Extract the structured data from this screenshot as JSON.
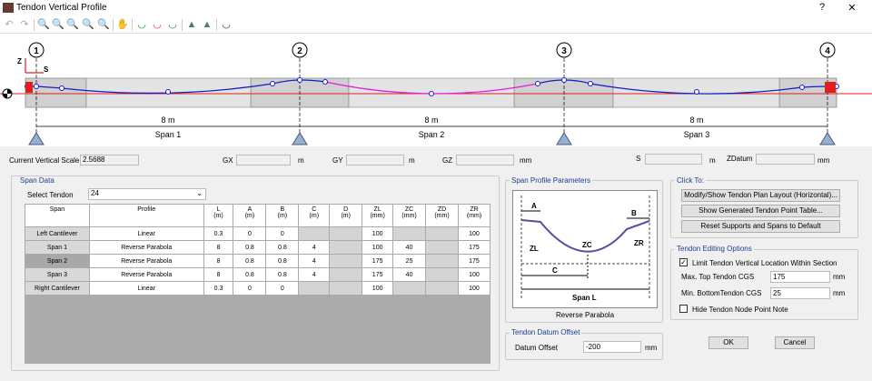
{
  "window": {
    "title": "Tendon Vertical Profile",
    "help": "?",
    "close": "✕"
  },
  "toolbar": {
    "icons": [
      "undo-icon",
      "redo-icon",
      "zoom-window-icon",
      "zoom-extents-icon",
      "zoom-in-icon",
      "zoom-previous-icon",
      "zoom-out-icon",
      "pan-icon",
      "view-top-icon",
      "view-mid-icon",
      "view-bottom-icon",
      "add-point-icon",
      "delete-point-icon",
      "tendon-shape-icon"
    ]
  },
  "drawing": {
    "supports": [
      "1",
      "2",
      "3",
      "4"
    ],
    "spans": [
      {
        "length": "8 m",
        "label": "Span 1"
      },
      {
        "length": "8 m",
        "label": "Span 2"
      },
      {
        "length": "8 m",
        "label": "Span 3"
      }
    ],
    "axis_z": "Z",
    "axis_s": "S",
    "colors": {
      "tendon": "#1a1acc",
      "selected_span": "#e020e0",
      "beam_line": "#e02020",
      "support": "#8fb3d0"
    }
  },
  "status": {
    "scale_label": "Current Vertical Scale",
    "scale_value": "2.5688",
    "gx": "GX",
    "gy": "GY",
    "gz": "GZ",
    "s": "S",
    "zdatum": "ZDatum",
    "m": "m",
    "mm": "mm"
  },
  "span_data": {
    "title": "Span Data",
    "select_label": "Select Tendon",
    "select_value": "24",
    "headers": [
      [
        "Span",
        ""
      ],
      [
        "Profile",
        ""
      ],
      [
        "L",
        "(m)"
      ],
      [
        "A",
        "(m)"
      ],
      [
        "B",
        "(m)"
      ],
      [
        "C",
        "(m)"
      ],
      [
        "D",
        "(m)"
      ],
      [
        "ZL",
        "(mm)"
      ],
      [
        "ZC",
        "(mm)"
      ],
      [
        "ZD",
        "(mm)"
      ],
      [
        "ZR",
        "(mm)"
      ]
    ],
    "rows": [
      [
        "Left Cantilever",
        "Linear",
        "0.3",
        "0",
        "0",
        "",
        "",
        "100",
        "",
        "",
        "100"
      ],
      [
        "Span 1",
        "Reverse Parabola",
        "8",
        "0.8",
        "0.8",
        "4",
        "",
        "100",
        "40",
        "",
        "175"
      ],
      [
        "Span 2",
        "Reverse Parabola",
        "8",
        "0.8",
        "0.8",
        "4",
        "",
        "175",
        "25",
        "",
        "175"
      ],
      [
        "Span 3",
        "Reverse Parabola",
        "8",
        "0.8",
        "0.8",
        "4",
        "",
        "175",
        "40",
        "",
        "100"
      ],
      [
        "Right Cantilever",
        "Linear",
        "0.3",
        "0",
        "0",
        "",
        "",
        "100",
        "",
        "",
        "100"
      ]
    ]
  },
  "profile_params": {
    "title": "Span Profile Parameters",
    "caption": "Reverse Parabola",
    "labels": {
      "a": "A",
      "b": "B",
      "zl": "ZL",
      "zc": "ZC",
      "zr": "ZR",
      "c": "C",
      "span": "Span L"
    }
  },
  "datum": {
    "title": "Tendon Datum Offset",
    "label": "Datum Offset",
    "value": "-200",
    "unit": "mm"
  },
  "click_to": {
    "title": "Click To:",
    "buttons": [
      "Modify/Show Tendon Plan Layout (Horizontal)...",
      "Show Generated Tendon Point Table...",
      "Reset Supports and Spans to Default"
    ]
  },
  "editing": {
    "title": "Tendon Editing Options",
    "limit_label": "Limit Tendon Vertical Location Within Section",
    "limit_checked": true,
    "max_label": "Max. Top Tendon CGS",
    "max_value": "175",
    "min_label": "Min. BottomTendon CGS",
    "min_value": "25",
    "unit": "mm",
    "hide_label": "Hide Tendon Node Point Note",
    "hide_checked": false
  },
  "ok": "OK",
  "cancel": "Cancel"
}
